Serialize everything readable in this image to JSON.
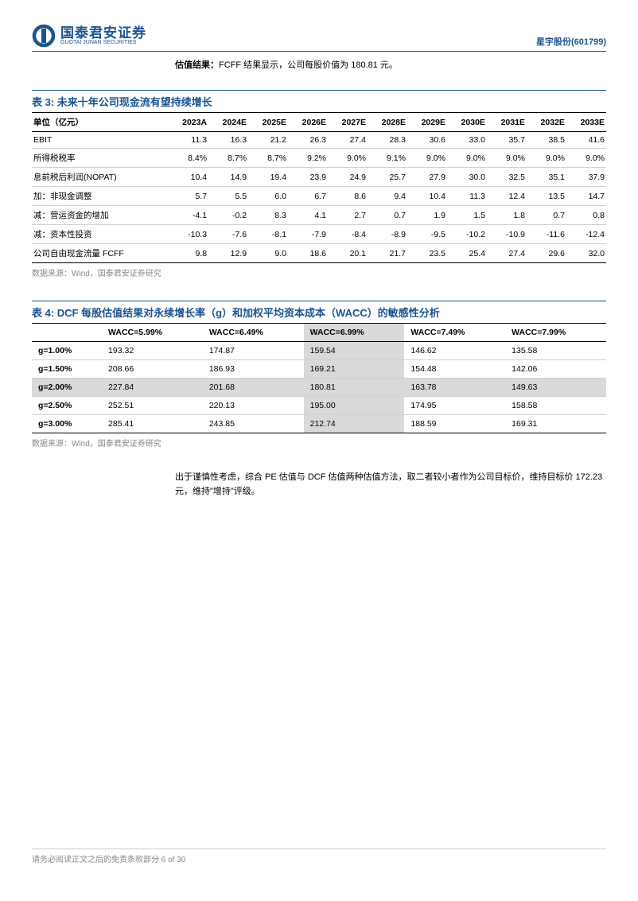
{
  "header": {
    "logo_cn": "国泰君安证券",
    "logo_en": "GUOTAI JUNAN SECURITIES",
    "company": "星宇股份(601799)"
  },
  "valuation_note": {
    "label": "估值结果：",
    "text": "FCFF 结果显示，公司每股价值为 180.81 元。"
  },
  "table3": {
    "title": "表 3:  未来十年公司现金流有望持续增长",
    "title_color": "#1a5490",
    "header_fontsize": 10.5,
    "columns": [
      "单位（亿元）",
      "2023A",
      "2024E",
      "2025E",
      "2026E",
      "2027E",
      "2028E",
      "2029E",
      "2030E",
      "2031E",
      "2032E",
      "2033E"
    ],
    "rows": [
      [
        "EBIT",
        "11.3",
        "16.3",
        "21.2",
        "26.3",
        "27.4",
        "28.3",
        "30.6",
        "33.0",
        "35.7",
        "38.5",
        "41.6"
      ],
      [
        "所得税税率",
        "8.4%",
        "8.7%",
        "8.7%",
        "9.2%",
        "9.0%",
        "9.1%",
        "9.0%",
        "9.0%",
        "9.0%",
        "9.0%",
        "9.0%"
      ],
      [
        "息前税后利润(NOPAT)",
        "10.4",
        "14.9",
        "19.4",
        "23.9",
        "24.9",
        "25.7",
        "27.9",
        "30.0",
        "32.5",
        "35.1",
        "37.9"
      ],
      [
        "加：非现金调整",
        "5.7",
        "5.5",
        "6.0",
        "6.7",
        "8.6",
        "9.4",
        "10.4",
        "11.3",
        "12.4",
        "13.5",
        "14.7"
      ],
      [
        "减：营运资金的增加",
        "-4.1",
        "-0.2",
        "8.3",
        "4.1",
        "2.7",
        "0.7",
        "1.9",
        "1.5",
        "1.8",
        "0.7",
        "0.8"
      ],
      [
        "减：资本性投资",
        "-10.3",
        "-7.6",
        "-8.1",
        "-7.9",
        "-8.4",
        "-8.9",
        "-9.5",
        "-10.2",
        "-10.9",
        "-11.6",
        "-12.4"
      ],
      [
        "公司自由现金流量 FCFF",
        "9.8",
        "12.9",
        "9.0",
        "18.6",
        "20.1",
        "21.7",
        "23.5",
        "25.4",
        "27.4",
        "29.6",
        "32.0"
      ]
    ],
    "source": "数据来源：Wind，国泰君安证券研究"
  },
  "table4": {
    "title": "表 4:  DCF 每股估值结果对永续增长率（g）和加权平均资本成本（WACC）的敏感性分析",
    "title_color": "#1a5490",
    "columns": [
      "",
      "WACC=5.99%",
      "WACC=6.49%",
      "WACC=6.99%",
      "WACC=7.49%",
      "WACC=7.99%"
    ],
    "rows": [
      [
        "g=1.00%",
        "193.32",
        "174.87",
        "159.54",
        "146.62",
        "135.58"
      ],
      [
        "g=1.50%",
        "208.66",
        "186.93",
        "169.21",
        "154.48",
        "142.06"
      ],
      [
        "g=2.00%",
        "227.84",
        "201.68",
        "180.81",
        "163.78",
        "149.63"
      ],
      [
        "g=2.50%",
        "252.51",
        "220.13",
        "195.00",
        "174.95",
        "158.58"
      ],
      [
        "g=3.00%",
        "285.41",
        "243.85",
        "212.74",
        "188.59",
        "169.31"
      ]
    ],
    "highlight_row_index": 2,
    "highlight_col_index": 3,
    "highlight_color": "#d9d9d9",
    "source": "数据来源：Wind，国泰君安证券研究"
  },
  "conclusion": "出于谨慎性考虑，综合 PE 估值与 DCF 估值两种估值方法，取二者较小者作为公司目标价，维持目标价 172.23 元，维持\"增持\"评级。",
  "footer": {
    "text_prefix": "请务必阅读正文之后的免责条款部分 ",
    "page": "6 of 30"
  },
  "colors": {
    "brand": "#1a5490",
    "text": "#000000",
    "muted": "#888888",
    "border": "#d0d0d0",
    "highlight": "#d9d9d9",
    "background": "#ffffff"
  }
}
